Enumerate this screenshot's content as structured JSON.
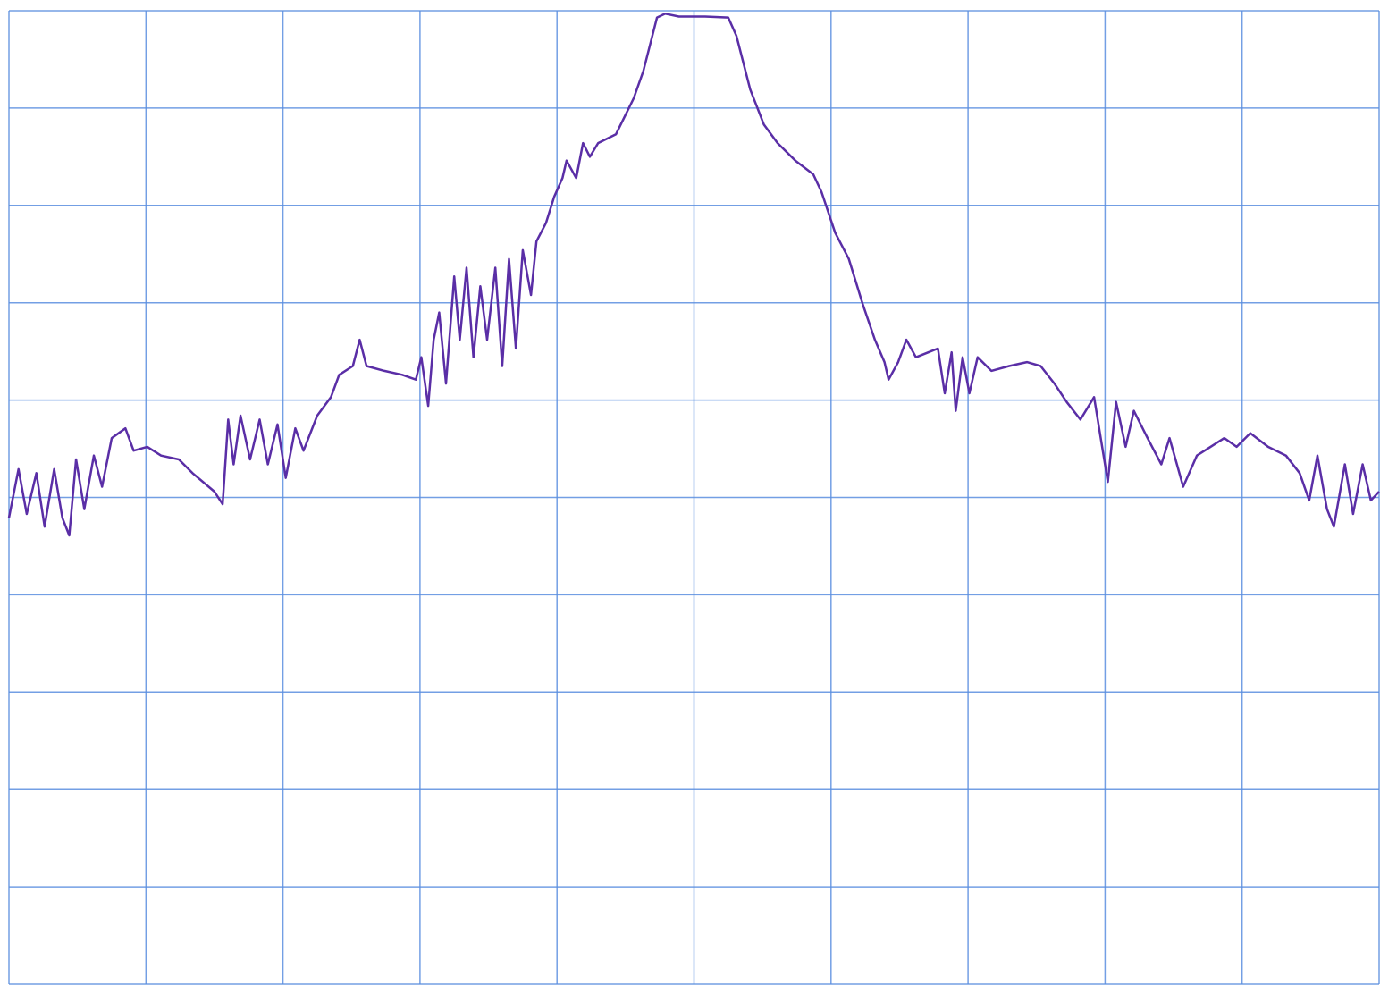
{
  "chart_data": {
    "type": "line",
    "x": [
      0,
      0.07,
      0.13,
      0.2,
      0.26,
      0.33,
      0.39,
      0.44,
      0.49,
      0.55,
      0.62,
      0.68,
      0.75,
      0.85,
      0.91,
      1.01,
      1.11,
      1.24,
      1.34,
      1.5,
      1.56,
      1.6,
      1.64,
      1.69,
      1.76,
      1.83,
      1.89,
      1.96,
      2.02,
      2.09,
      2.15,
      2.25,
      2.35,
      2.41,
      2.51,
      2.56,
      2.61,
      2.74,
      2.87,
      2.97,
      3.01,
      3.06,
      3.1,
      3.14,
      3.19,
      3.25,
      3.29,
      3.34,
      3.39,
      3.44,
      3.49,
      3.55,
      3.6,
      3.65,
      3.7,
      3.75,
      3.81,
      3.85,
      3.92,
      3.98,
      4.04,
      4.07,
      4.14,
      4.19,
      4.24,
      4.3,
      4.43,
      4.56,
      4.63,
      4.73,
      4.79,
      4.89,
      5.08,
      5.25,
      5.31,
      5.41,
      5.51,
      5.61,
      5.74,
      5.87,
      5.93,
      6.03,
      6.13,
      6.23,
      6.32,
      6.39,
      6.42,
      6.49,
      6.55,
      6.62,
      6.71,
      6.78,
      6.83,
      6.88,
      6.91,
      6.96,
      7.01,
      7.07,
      7.17,
      7.3,
      7.43,
      7.53,
      7.63,
      7.72,
      7.82,
      7.92,
      8.02,
      8.08,
      8.15,
      8.21,
      8.31,
      8.41,
      8.47,
      8.57,
      8.67,
      8.77,
      8.87,
      8.96,
      9.06,
      9.19,
      9.32,
      9.42,
      9.49,
      9.55,
      9.62,
      9.67,
      9.75,
      9.81,
      9.88,
      9.94,
      10
    ],
    "series": [
      {
        "color": "#5a2ea6",
        "values": [
          4.79,
          5.29,
          4.83,
          5.25,
          4.7,
          5.29,
          4.79,
          4.61,
          5.39,
          4.88,
          5.43,
          5.11,
          5.61,
          5.71,
          5.48,
          5.52,
          5.43,
          5.39,
          5.25,
          5.06,
          4.93,
          5.8,
          5.34,
          5.84,
          5.39,
          5.8,
          5.34,
          5.75,
          5.2,
          5.71,
          5.48,
          5.84,
          6.03,
          6.26,
          6.35,
          6.62,
          6.35,
          6.3,
          6.26,
          6.21,
          6.44,
          5.94,
          6.62,
          6.9,
          6.17,
          7.27,
          6.62,
          7.36,
          6.44,
          7.17,
          6.62,
          7.36,
          6.35,
          7.45,
          6.53,
          7.54,
          7.08,
          7.63,
          7.82,
          8.09,
          8.28,
          8.46,
          8.28,
          8.64,
          8.5,
          8.64,
          8.73,
          9.1,
          9.38,
          9.93,
          9.97,
          9.94,
          9.94,
          9.93,
          9.74,
          9.19,
          8.83,
          8.64,
          8.46,
          8.32,
          8.14,
          7.72,
          7.45,
          6.99,
          6.62,
          6.39,
          6.21,
          6.39,
          6.62,
          6.44,
          6.49,
          6.53,
          6.07,
          6.49,
          5.89,
          6.44,
          6.07,
          6.44,
          6.3,
          6.35,
          6.39,
          6.35,
          6.17,
          5.98,
          5.8,
          6.03,
          5.16,
          5.98,
          5.52,
          5.89,
          5.61,
          5.34,
          5.61,
          5.11,
          5.43,
          5.52,
          5.61,
          5.52,
          5.66,
          5.52,
          5.43,
          5.25,
          4.97,
          5.43,
          4.88,
          4.7,
          5.34,
          4.83,
          5.34,
          4.97,
          5.06
        ]
      }
    ],
    "xlim": [
      0,
      10
    ],
    "ylim": [
      0,
      10
    ],
    "xticks": [
      0,
      1,
      2,
      3,
      4,
      5,
      6,
      7,
      8,
      9,
      10
    ],
    "yticks": [
      0,
      1,
      2,
      3,
      4,
      5,
      6,
      7,
      8,
      9,
      10
    ],
    "grid": true,
    "grid_color": "#5b8fe0"
  }
}
